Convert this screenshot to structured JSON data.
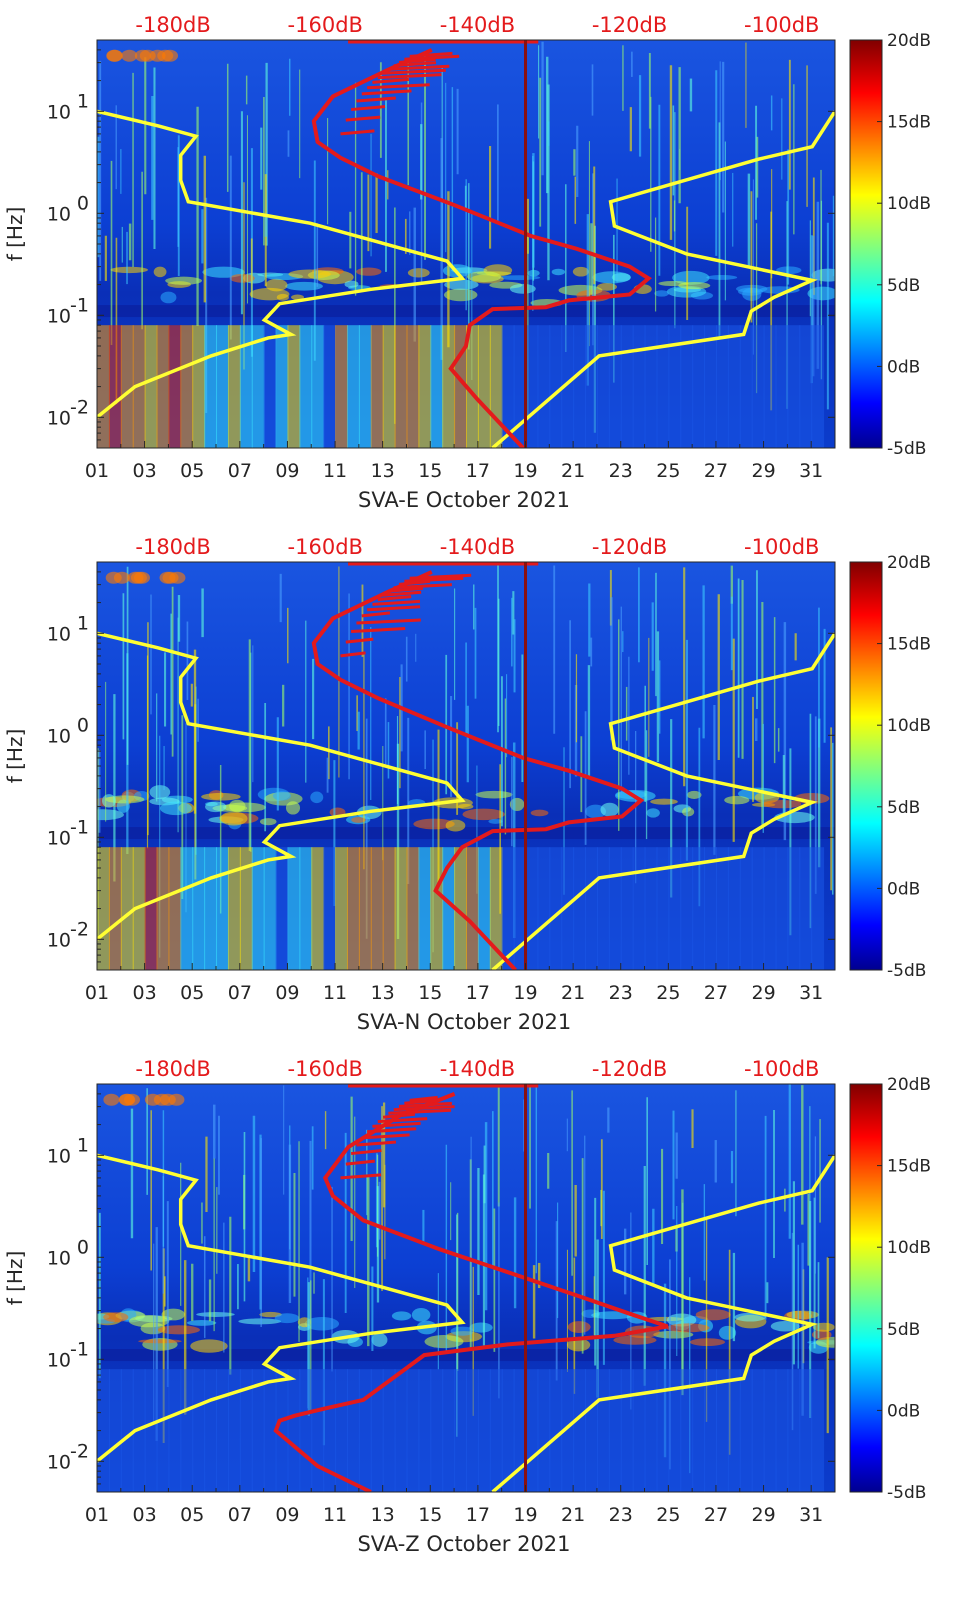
{
  "colors": {
    "yellow_curve": "#ffff33",
    "red_curve": "#e31a1c",
    "marker_line": "#8b1010",
    "background": "#0b3fd6",
    "top_axis_text": "#e41a1c"
  },
  "colorbar": {
    "ticks": [
      "20dB",
      "15dB",
      "10dB",
      "5dB",
      "0dB",
      "-5dB"
    ],
    "values": [
      20,
      15,
      10,
      5,
      0,
      -5
    ],
    "range": [
      -5,
      20
    ],
    "colormap": "jet"
  },
  "chart_data": [
    {
      "type": "heatmap",
      "title": "",
      "xlabel": "SVA-E October 2021",
      "ylabel": "f [Hz]",
      "x_tick_labels": [
        "01",
        "03",
        "05",
        "07",
        "09",
        "11",
        "13",
        "15",
        "17",
        "19",
        "21",
        "23",
        "25",
        "27",
        "29",
        "31"
      ],
      "xlim": [
        1,
        32
      ],
      "y_tick_labels": [
        "10",
        "10",
        "10",
        "10"
      ],
      "y_tick_exponents": [
        "-2",
        "-1",
        "0",
        "1"
      ],
      "y_tick_values": [
        0.01,
        0.1,
        1,
        10
      ],
      "ylim": [
        0.005,
        50
      ],
      "y_scale": "log",
      "top_tick_labels": [
        "-180dB",
        "-160dB",
        "-140dB",
        "-120dB",
        "-100dB"
      ],
      "top_tick_values": [
        -180,
        -160,
        -140,
        -120,
        -100
      ],
      "top_xlim": [
        -190,
        -93
      ],
      "marker_day": 19.0,
      "series": [
        {
          "color": "yellow",
          "x_db": [
            -190,
            -185,
            -175,
            -167.5,
            -164.5,
            -168,
            -166,
            -154,
            -142,
            -144,
            -162,
            -178,
            -179,
            -179,
            -177,
            -182,
            -190
          ],
          "f_hz": [
            0.01,
            0.02,
            0.04,
            0.06,
            0.065,
            0.09,
            0.13,
            0.18,
            0.23,
            0.34,
            0.8,
            1.3,
            2.1,
            3.7,
            5.7,
            7.2,
            10
          ],
          "x_db2": [
            -138,
            -124,
            -105,
            -104,
            -101,
            -96,
            -112.5,
            -122,
            -122.5,
            -103,
            -96,
            -93
          ],
          "f_hz2": [
            0.005,
            0.04,
            0.065,
            0.11,
            0.15,
            0.22,
            0.4,
            0.75,
            1.3,
            3.4,
            4.5,
            10
          ]
        },
        {
          "color": "red",
          "x_db": [
            -134,
            -140,
            -143.5,
            -141.5,
            -141,
            -138,
            -131,
            -128,
            -120,
            -117.5,
            -120,
            -127,
            -133,
            -143,
            -153,
            -158,
            -161,
            -161.5,
            -159,
            -152,
            -146
          ],
          "f_hz": [
            0.005,
            0.015,
            0.03,
            0.05,
            0.08,
            0.115,
            0.12,
            0.14,
            0.16,
            0.23,
            0.3,
            0.45,
            0.6,
            1.2,
            2.3,
            3.5,
            5.0,
            8.0,
            14,
            25,
            40
          ]
        }
      ]
    },
    {
      "type": "heatmap",
      "title": "",
      "xlabel": "SVA-N October 2021",
      "ylabel": "f [Hz]",
      "x_tick_labels": [
        "01",
        "03",
        "05",
        "07",
        "09",
        "11",
        "13",
        "15",
        "17",
        "19",
        "21",
        "23",
        "25",
        "27",
        "29",
        "31"
      ],
      "xlim": [
        1,
        32
      ],
      "y_tick_labels": [
        "10",
        "10",
        "10",
        "10"
      ],
      "y_tick_exponents": [
        "-2",
        "-1",
        "0",
        "1"
      ],
      "y_tick_values": [
        0.01,
        0.1,
        1,
        10
      ],
      "ylim": [
        0.005,
        50
      ],
      "y_scale": "log",
      "top_tick_labels": [
        "-180dB",
        "-160dB",
        "-140dB",
        "-120dB",
        "-100dB"
      ],
      "top_tick_values": [
        -180,
        -160,
        -140,
        -120,
        -100
      ],
      "top_xlim": [
        -190,
        -93
      ],
      "marker_day": 19.0,
      "series": [
        {
          "color": "yellow",
          "x_db": [
            -190,
            -185,
            -175,
            -167.5,
            -164.5,
            -168,
            -166,
            -154,
            -142,
            -144,
            -162,
            -178,
            -179,
            -179,
            -177,
            -182,
            -190
          ],
          "f_hz": [
            0.01,
            0.02,
            0.04,
            0.06,
            0.065,
            0.09,
            0.13,
            0.18,
            0.23,
            0.34,
            0.8,
            1.3,
            2.1,
            3.7,
            5.7,
            7.2,
            10
          ],
          "x_db2": [
            -138,
            -124,
            -105,
            -104,
            -101,
            -96,
            -112.5,
            -122,
            -122.5,
            -103,
            -96,
            -93
          ],
          "f_hz2": [
            0.005,
            0.04,
            0.065,
            0.11,
            0.15,
            0.22,
            0.4,
            0.75,
            1.3,
            3.4,
            4.5,
            10
          ]
        },
        {
          "color": "red",
          "x_db": [
            -135,
            -141,
            -145.5,
            -144,
            -142,
            -138,
            -131,
            -128,
            -121,
            -118.5,
            -121,
            -128,
            -134,
            -144,
            -153,
            -158,
            -161,
            -161.5,
            -159,
            -152,
            -146
          ],
          "f_hz": [
            0.005,
            0.015,
            0.03,
            0.05,
            0.08,
            0.115,
            0.12,
            0.14,
            0.16,
            0.23,
            0.3,
            0.45,
            0.6,
            1.2,
            2.3,
            3.5,
            5.0,
            8.0,
            14,
            25,
            40
          ]
        }
      ]
    },
    {
      "type": "heatmap",
      "title": "",
      "xlabel": "SVA-Z October 2021",
      "ylabel": "f [Hz]",
      "x_tick_labels": [
        "01",
        "03",
        "05",
        "07",
        "09",
        "11",
        "13",
        "15",
        "17",
        "19",
        "21",
        "23",
        "25",
        "27",
        "29",
        "31"
      ],
      "xlim": [
        1,
        32
      ],
      "y_tick_labels": [
        "10",
        "10",
        "10",
        "10"
      ],
      "y_tick_exponents": [
        "-2",
        "-1",
        "0",
        "1"
      ],
      "y_tick_values": [
        0.01,
        0.1,
        1,
        10
      ],
      "ylim": [
        0.005,
        50
      ],
      "y_scale": "log",
      "top_tick_labels": [
        "-180dB",
        "-160dB",
        "-140dB",
        "-120dB",
        "-100dB"
      ],
      "top_tick_values": [
        -180,
        -160,
        -140,
        -120,
        -100
      ],
      "top_xlim": [
        -190,
        -93
      ],
      "marker_day": 19.0,
      "series": [
        {
          "color": "yellow",
          "x_db": [
            -190,
            -185,
            -175,
            -167.5,
            -164.5,
            -168,
            -166,
            -154,
            -142,
            -144,
            -162,
            -178,
            -179,
            -179,
            -177,
            -182,
            -190
          ],
          "f_hz": [
            0.01,
            0.02,
            0.04,
            0.06,
            0.065,
            0.09,
            0.13,
            0.18,
            0.23,
            0.34,
            0.8,
            1.3,
            2.1,
            3.7,
            5.7,
            7.2,
            10
          ],
          "x_db2": [
            -138,
            -124,
            -105,
            -104,
            -101,
            -96,
            -112.5,
            -122,
            -122.5,
            -103,
            -96,
            -93
          ],
          "f_hz2": [
            0.005,
            0.04,
            0.065,
            0.11,
            0.15,
            0.22,
            0.4,
            0.75,
            1.3,
            3.4,
            4.5,
            10
          ]
        },
        {
          "color": "red",
          "x_db": [
            -154,
            -161,
            -166.5,
            -166,
            -164,
            -160,
            -155,
            -147,
            -136,
            -122,
            -115,
            -120,
            -126,
            -133,
            -145,
            -155,
            -159,
            -160,
            -157,
            -150,
            -143
          ],
          "f_hz": [
            0.005,
            0.009,
            0.02,
            0.025,
            0.028,
            0.033,
            0.04,
            0.11,
            0.14,
            0.17,
            0.21,
            0.28,
            0.4,
            0.6,
            1.2,
            2.3,
            4.0,
            6.0,
            12,
            25,
            40
          ]
        }
      ]
    }
  ]
}
